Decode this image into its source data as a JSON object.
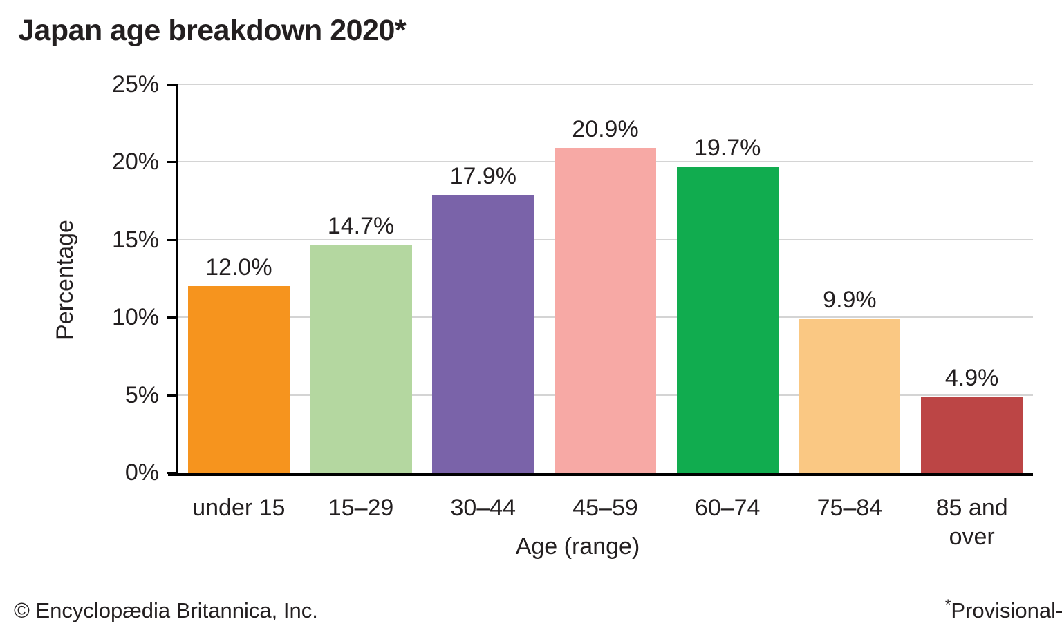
{
  "chart_data": {
    "type": "bar",
    "title": "Japan age breakdown 2020*",
    "categories": [
      "under 15",
      "15–29",
      "30–44",
      "45–59",
      "60–74",
      "75–84",
      "85 and over"
    ],
    "values": [
      12.0,
      14.7,
      17.9,
      20.9,
      19.7,
      9.9,
      4.9
    ],
    "value_labels": [
      "12.0%",
      "14.7%",
      "17.9%",
      "20.9%",
      "19.7%",
      "9.9%",
      "4.9%"
    ],
    "bar_colors": [
      "#F6941E",
      "#B4D7A0",
      "#7A63A9",
      "#F7A9A5",
      "#11AC4F",
      "#FAC883",
      "#BC4545"
    ],
    "xlabel": "Age (range)",
    "ylabel": "Percentage",
    "ylim": [
      0,
      25
    ],
    "yticks": {
      "values": [
        0,
        5,
        10,
        15,
        20,
        25
      ],
      "labels": [
        "0%",
        "5%",
        "10%",
        "15%",
        "20%",
        "25%"
      ]
    },
    "grid": true,
    "legend": false,
    "gridline_color": "#D4D4D4",
    "axis_color": "#000000"
  },
  "footer": {
    "copyright": "© Encyclopædia Britannica, Inc.",
    "footnote_marker": "*",
    "footnote_text": "Provisional",
    "footnote_clipped": "–"
  }
}
